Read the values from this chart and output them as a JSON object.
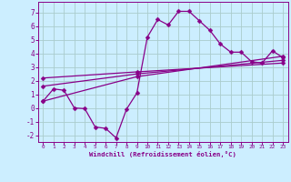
{
  "xlabel": "Windchill (Refroidissement éolien,°C)",
  "background_color": "#cceeff",
  "grid_color": "#aacccc",
  "line_color": "#880088",
  "xlim": [
    -0.5,
    23.5
  ],
  "ylim": [
    -2.5,
    7.8
  ],
  "xticks": [
    0,
    1,
    2,
    3,
    4,
    5,
    6,
    7,
    8,
    9,
    10,
    11,
    12,
    13,
    14,
    15,
    16,
    17,
    18,
    19,
    20,
    21,
    22,
    23
  ],
  "yticks": [
    -2,
    -1,
    0,
    1,
    2,
    3,
    4,
    5,
    6,
    7
  ],
  "line1_x": [
    0,
    1,
    2,
    3,
    4,
    5,
    6,
    7,
    8,
    9,
    10,
    11,
    12,
    13,
    14,
    15,
    16,
    17,
    18,
    19,
    20,
    21,
    22,
    23
  ],
  "line1_y": [
    0.5,
    1.4,
    1.3,
    0.0,
    -0.05,
    -1.4,
    -1.5,
    -2.2,
    -0.1,
    1.1,
    5.2,
    6.5,
    6.1,
    7.1,
    7.1,
    6.4,
    5.7,
    4.7,
    4.1,
    4.1,
    3.4,
    3.3,
    4.2,
    3.7
  ],
  "line2_x": [
    0,
    9,
    23
  ],
  "line2_y": [
    0.5,
    2.3,
    3.8
  ],
  "line3_x": [
    0,
    9,
    23
  ],
  "line3_y": [
    1.6,
    2.5,
    3.5
  ],
  "line4_x": [
    0,
    9,
    23
  ],
  "line4_y": [
    2.2,
    2.65,
    3.3
  ],
  "marker": "D",
  "markersize": 2.5,
  "linewidth": 0.9
}
